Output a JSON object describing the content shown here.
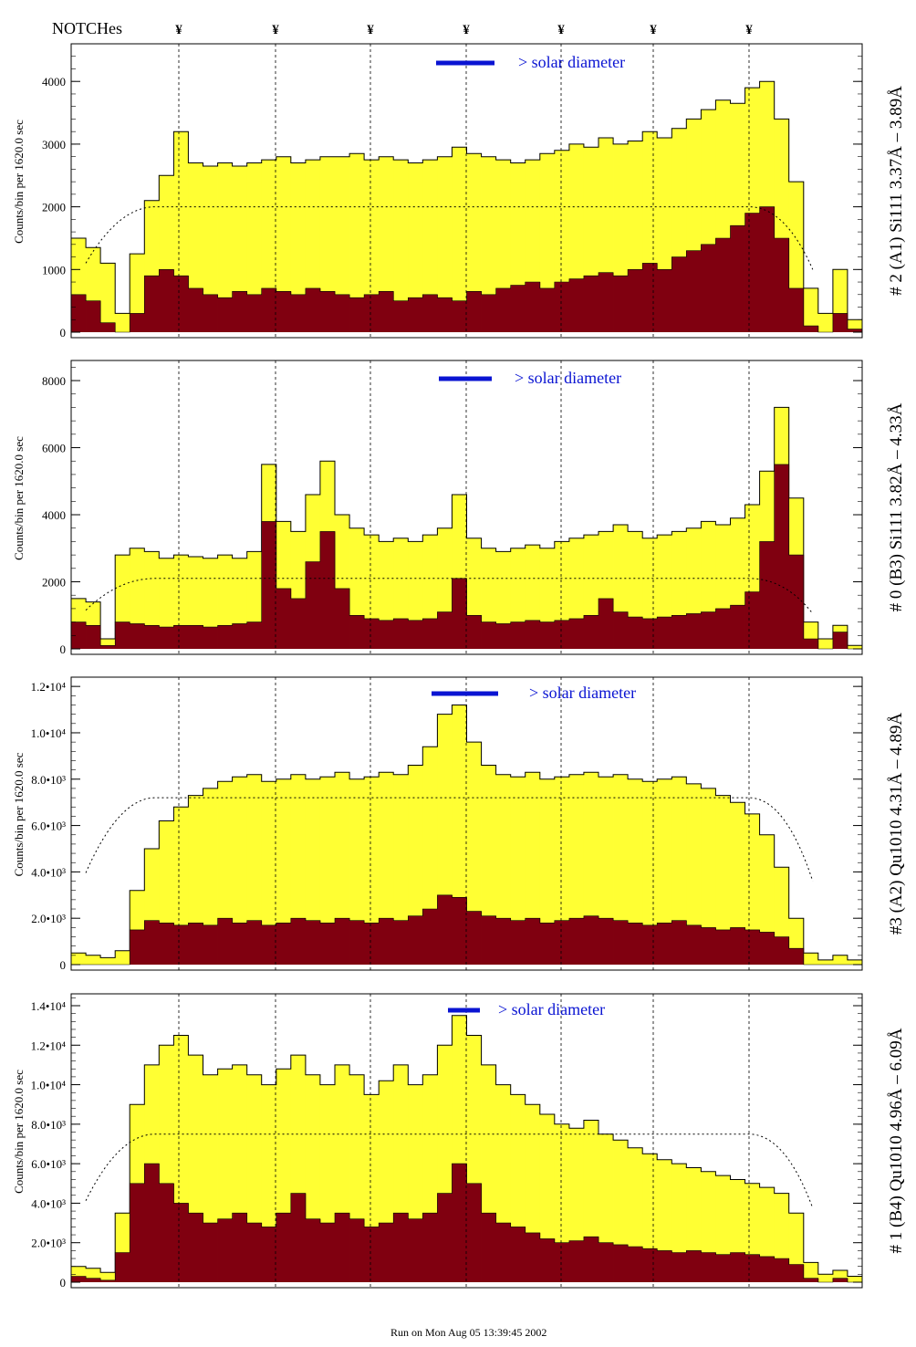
{
  "header": {
    "notches_label": "NOTCHes",
    "notch_symbol": "¥"
  },
  "colors": {
    "total_fill": "#ffff33",
    "dark_fill": "#800010",
    "marker": "#0a14d2",
    "line_label": "#000000"
  },
  "footer": {
    "run_text": "Run on Mon Aug 05 13:39:45 2002"
  },
  "chart_data": [
    {
      "type": "bar",
      "title": "# 2 (A1) Si111  3.37Å – 3.89Å",
      "ylabel": "Counts/bin per   1620.0 sec",
      "annotation": "> solar diameter",
      "ylim": [
        0,
        4600
      ],
      "yticks": [
        0,
        1000,
        2000,
        3000,
        4000
      ],
      "ytick_labels": [
        "0",
        "1000",
        "2000",
        "3000",
        "4000"
      ],
      "envelope_level": 2000,
      "series": [
        {
          "name": "",
          "values": [
            1500,
            1350,
            1100,
            300,
            1250,
            2100,
            2500,
            3200,
            2700,
            2650,
            2700,
            2650,
            2700,
            2750,
            2800,
            2700,
            2750,
            2800,
            2800,
            2850,
            2750,
            2800,
            2750,
            2700,
            2750,
            2800,
            2950,
            2850,
            2800,
            2750,
            2700,
            2750,
            2850,
            2900,
            3000,
            2950,
            3100,
            3000,
            3050,
            3200,
            3100,
            3250,
            3400,
            3550,
            3700,
            3650,
            3900,
            4000,
            3400,
            2400,
            700,
            300,
            1000,
            200
          ]
        },
        {
          "name": "",
          "values": [
            600,
            500,
            150,
            0,
            300,
            900,
            1000,
            900,
            700,
            600,
            550,
            650,
            600,
            700,
            650,
            600,
            700,
            650,
            600,
            550,
            600,
            650,
            500,
            550,
            600,
            550,
            500,
            650,
            600,
            700,
            750,
            800,
            700,
            800,
            850,
            900,
            950,
            900,
            1000,
            1100,
            1000,
            1200,
            1300,
            1400,
            1500,
            1700,
            1900,
            2000,
            1500,
            700,
            100,
            0,
            300,
            50
          ]
        }
      ]
    },
    {
      "type": "bar",
      "title": "# 0 (B3) Si111  3.82Å – 4.33Å",
      "ylabel": "Counts/bin per   1620.0 sec",
      "annotation": "> solar diameter",
      "ylim": [
        0,
        8600
      ],
      "yticks": [
        0,
        2000,
        4000,
        6000,
        8000
      ],
      "ytick_labels": [
        "0",
        "2000",
        "4000",
        "6000",
        "8000"
      ],
      "envelope_level": 2100,
      "series": [
        {
          "name": "",
          "values": [
            1500,
            1400,
            300,
            2800,
            3000,
            2900,
            2700,
            2800,
            2750,
            2700,
            2800,
            2700,
            2900,
            5500,
            3800,
            3500,
            4600,
            5600,
            4000,
            3600,
            3400,
            3200,
            3300,
            3200,
            3400,
            3600,
            4600,
            3300,
            3000,
            2900,
            3000,
            3100,
            3000,
            3200,
            3300,
            3400,
            3500,
            3700,
            3500,
            3300,
            3400,
            3500,
            3600,
            3800,
            3700,
            3900,
            4300,
            5300,
            7200,
            4500,
            800,
            300,
            700,
            100
          ]
        },
        {
          "name": "",
          "values": [
            800,
            700,
            100,
            800,
            750,
            700,
            650,
            700,
            700,
            650,
            700,
            750,
            800,
            3800,
            1800,
            1500,
            2600,
            3500,
            1800,
            1000,
            900,
            850,
            900,
            850,
            900,
            1100,
            2100,
            1000,
            800,
            750,
            800,
            850,
            800,
            850,
            900,
            1000,
            1500,
            1100,
            950,
            900,
            950,
            1000,
            1050,
            1100,
            1200,
            1300,
            1700,
            3200,
            5500,
            2800,
            300,
            0,
            500,
            0
          ]
        }
      ]
    },
    {
      "type": "bar",
      "title": "#3 (A2) Qu1010  4.31Å – 4.89Å",
      "ylabel": "Counts/bin per   1620.0 sec",
      "annotation": "> solar diameter",
      "ylim": [
        0,
        12400
      ],
      "yticks": [
        0,
        2000,
        4000,
        6000,
        8000,
        10000,
        12000
      ],
      "ytick_labels": [
        "0",
        "2.0•10³",
        "4.0•10³",
        "6.0•10³",
        "8.0•10³",
        "1.0•10⁴",
        "1.2•10⁴"
      ],
      "envelope_level": 7200,
      "series": [
        {
          "name": "",
          "values": [
            500,
            400,
            300,
            600,
            3200,
            5000,
            6200,
            6800,
            7300,
            7600,
            7900,
            8100,
            8200,
            7900,
            8000,
            8200,
            8000,
            8100,
            8300,
            8000,
            8100,
            8300,
            8200,
            8600,
            9400,
            10800,
            11200,
            9600,
            8600,
            8200,
            8100,
            8300,
            8000,
            8100,
            8200,
            8300,
            8100,
            8200,
            8000,
            7900,
            8000,
            8100,
            7800,
            7600,
            7300,
            7000,
            6500,
            5600,
            4200,
            2000,
            500,
            200,
            400,
            200
          ]
        },
        {
          "name": "",
          "values": [
            0,
            0,
            0,
            0,
            1500,
            1900,
            1800,
            1700,
            1800,
            1700,
            2000,
            1800,
            1900,
            1700,
            1800,
            2000,
            1900,
            1800,
            2000,
            1900,
            1800,
            2000,
            1900,
            2100,
            2400,
            3000,
            2900,
            2300,
            2100,
            2000,
            1900,
            2000,
            1800,
            1900,
            2000,
            2100,
            2000,
            1900,
            1800,
            1700,
            1800,
            1900,
            1700,
            1600,
            1500,
            1600,
            1500,
            1400,
            1200,
            700,
            0,
            0,
            0,
            0
          ]
        }
      ]
    },
    {
      "type": "bar",
      "title": "# 1 (B4) Qu1010 4.96Å – 6.09Å",
      "ylabel": "Counts/bin per   1620.0 sec",
      "annotation": "> solar diameter",
      "ylim": [
        0,
        14600
      ],
      "yticks": [
        0,
        2000,
        4000,
        6000,
        8000,
        10000,
        12000,
        14000
      ],
      "ytick_labels": [
        "0",
        "2.0•10³",
        "4.0•10³",
        "6.0•10³",
        "8.0•10³",
        "1.0•10⁴",
        "1.2•10⁴",
        "1.4•10⁴"
      ],
      "envelope_level": 7500,
      "series": [
        {
          "name": "",
          "values": [
            800,
            700,
            500,
            3500,
            9000,
            11000,
            12000,
            12500,
            11500,
            10500,
            10800,
            11000,
            10500,
            10000,
            10800,
            11500,
            10500,
            10000,
            11000,
            10500,
            9500,
            10200,
            11000,
            10000,
            10500,
            12000,
            13500,
            12500,
            11000,
            10000,
            9500,
            9000,
            8500,
            8000,
            7800,
            8200,
            7500,
            7200,
            6800,
            6500,
            6200,
            6000,
            5800,
            5600,
            5400,
            5200,
            5000,
            4800,
            4500,
            3500,
            1000,
            400,
            600,
            300
          ]
        },
        {
          "name": "",
          "values": [
            300,
            200,
            100,
            1500,
            5000,
            6000,
            5000,
            4000,
            3500,
            3000,
            3200,
            3500,
            3000,
            2800,
            3500,
            4500,
            3200,
            3000,
            3500,
            3200,
            2800,
            3000,
            3500,
            3200,
            3500,
            4500,
            6000,
            5000,
            3500,
            3000,
            2800,
            2500,
            2200,
            2000,
            2100,
            2300,
            2000,
            1900,
            1800,
            1700,
            1600,
            1500,
            1600,
            1500,
            1400,
            1500,
            1400,
            1300,
            1200,
            900,
            200,
            0,
            200,
            0
          ]
        }
      ]
    }
  ]
}
